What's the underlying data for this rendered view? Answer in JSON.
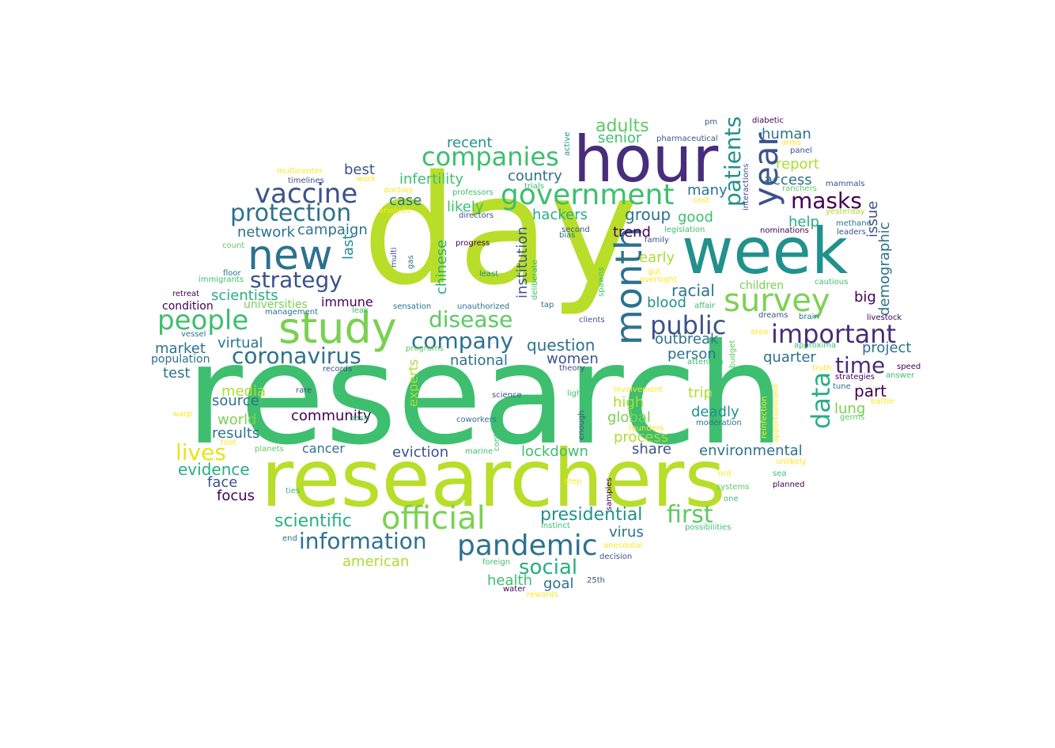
{
  "palette": [
    "#440154",
    "#472d7b",
    "#3b528b",
    "#2c728e",
    "#21918c",
    "#28ae80",
    "#5ec962",
    "#addc30",
    "#fde725"
  ],
  "words": [
    {
      "text": "research",
      "color": "#3dbf6f"
    },
    {
      "text": "day",
      "color": "#b8de29"
    },
    {
      "text": "researchers",
      "color": "#b8de29"
    },
    {
      "text": "hour",
      "color": "#472d7b"
    },
    {
      "text": "week",
      "color": "#21918c"
    },
    {
      "text": "month",
      "color": "#2c728e"
    },
    {
      "text": "year",
      "color": "#3b528b"
    },
    {
      "text": "study",
      "color": "#7ad151"
    },
    {
      "text": "new",
      "color": "#2c728e"
    },
    {
      "text": "survey",
      "color": "#7ad151"
    },
    {
      "text": "official",
      "color": "#7ad151"
    },
    {
      "text": "government",
      "color": "#3dbf6f"
    },
    {
      "text": "pandemic",
      "color": "#2c728e"
    },
    {
      "text": "companies",
      "color": "#3dbf6f"
    },
    {
      "text": "vaccine",
      "color": "#3b528b"
    },
    {
      "text": "protection",
      "color": "#2c728e"
    },
    {
      "text": "people",
      "color": "#3dbf6f"
    },
    {
      "text": "coronavirus",
      "color": "#2c728e"
    },
    {
      "text": "important",
      "color": "#472d7b"
    },
    {
      "text": "public",
      "color": "#3b528b"
    },
    {
      "text": "information",
      "color": "#2c728e"
    },
    {
      "text": "patients",
      "color": "#21918c"
    },
    {
      "text": "data",
      "color": "#28ae80"
    },
    {
      "text": "strategy",
      "color": "#3b528b"
    },
    {
      "text": "disease",
      "color": "#5ec962"
    },
    {
      "text": "company",
      "color": "#2c728e"
    },
    {
      "text": "time",
      "color": "#472d7b"
    },
    {
      "text": "masks",
      "color": "#440154"
    },
    {
      "text": "social",
      "color": "#28ae80"
    },
    {
      "text": "first",
      "color": "#5ec962"
    },
    {
      "text": "lives",
      "color": "#e8e419"
    },
    {
      "text": "presidential",
      "color": "#21918c"
    },
    {
      "text": "scientific",
      "color": "#28ae80"
    },
    {
      "text": "adults",
      "color": "#5ec962"
    },
    {
      "text": "question",
      "color": "#2c728e"
    },
    {
      "text": "infertility",
      "color": "#3dbf6f"
    },
    {
      "text": "institution",
      "color": "#3b528b"
    },
    {
      "text": "demographic",
      "color": "#2c728e"
    },
    {
      "text": "issue",
      "color": "#3b528b"
    },
    {
      "text": "chinese",
      "color": "#28ae80"
    },
    {
      "text": "last",
      "color": "#21918c"
    },
    {
      "text": "evidence",
      "color": "#28ae80"
    },
    {
      "text": "environmental",
      "color": "#2c728e"
    },
    {
      "text": "deadly",
      "color": "#21918c"
    },
    {
      "text": "group",
      "color": "#2c728e"
    },
    {
      "text": "outbreak",
      "color": "#2c728e"
    },
    {
      "text": "racial",
      "color": "#2c728e"
    },
    {
      "text": "national",
      "color": "#2c728e"
    },
    {
      "text": "american",
      "color": "#addc30"
    },
    {
      "text": "hackers",
      "color": "#28ae80"
    },
    {
      "text": "part",
      "color": "#440154"
    },
    {
      "text": "lockdown",
      "color": "#3dbf6f"
    },
    {
      "text": "virus",
      "color": "#2c728e"
    },
    {
      "text": "community",
      "color": "#440154"
    },
    {
      "text": "eviction",
      "color": "#3b528b"
    },
    {
      "text": "campaign",
      "color": "#2c728e"
    },
    {
      "text": "network",
      "color": "#2c728e"
    },
    {
      "text": "scientists",
      "color": "#28ae80"
    },
    {
      "text": "recent",
      "color": "#21918c"
    },
    {
      "text": "country",
      "color": "#2c728e"
    },
    {
      "text": "likely",
      "color": "#3dbf6f"
    },
    {
      "text": "case",
      "color": "#2c728e"
    },
    {
      "text": "best",
      "color": "#3b528b"
    },
    {
      "text": "trend",
      "color": "#440154"
    },
    {
      "text": "early",
      "color": "#addc30"
    },
    {
      "text": "blood",
      "color": "#21918c"
    },
    {
      "text": "senior",
      "color": "#3dbf6f"
    },
    {
      "text": "human",
      "color": "#2c728e"
    },
    {
      "text": "access",
      "color": "#2c728e"
    },
    {
      "text": "report",
      "color": "#addc30"
    },
    {
      "text": "help",
      "color": "#28ae80"
    },
    {
      "text": "many",
      "color": "#2c728e"
    },
    {
      "text": "good",
      "color": "#3dbf6f"
    },
    {
      "text": "immune",
      "color": "#440154"
    },
    {
      "text": "universities",
      "color": "#7ad151"
    },
    {
      "text": "condition",
      "color": "#440154"
    },
    {
      "text": "market",
      "color": "#2c728e"
    },
    {
      "text": "population",
      "color": "#2c728e"
    },
    {
      "text": "test",
      "color": "#2c728e"
    },
    {
      "text": "virtual",
      "color": "#2c728e"
    },
    {
      "text": "women",
      "color": "#3b528b"
    },
    {
      "text": "person",
      "color": "#2c728e"
    },
    {
      "text": "quarter",
      "color": "#2c728e"
    },
    {
      "text": "project",
      "color": "#2c728e"
    },
    {
      "text": "big",
      "color": "#440154"
    },
    {
      "text": "children",
      "color": "#7ad151"
    },
    {
      "text": "media",
      "color": "#addc30"
    },
    {
      "text": "source",
      "color": "#2c728e"
    },
    {
      "text": "world",
      "color": "#7ad151"
    },
    {
      "text": "results",
      "color": "#2c728e"
    },
    {
      "text": "high",
      "color": "#addc30"
    },
    {
      "text": "global",
      "color": "#7ad151"
    },
    {
      "text": "process",
      "color": "#addc30"
    },
    {
      "text": "share",
      "color": "#3b528b"
    },
    {
      "text": "trip",
      "color": "#addc30"
    },
    {
      "text": "lung",
      "color": "#7ad151"
    },
    {
      "text": "cancer",
      "color": "#2c728e"
    },
    {
      "text": "face",
      "color": "#3b528b"
    },
    {
      "text": "focus",
      "color": "#440154"
    },
    {
      "text": "experts",
      "color": "#addc30"
    },
    {
      "text": "health",
      "color": "#3dbf6f"
    },
    {
      "text": "goal",
      "color": "#2c728e"
    },
    {
      "text": "multicenter",
      "color": "#fde725"
    },
    {
      "text": "work",
      "color": "#fde725"
    },
    {
      "text": "timelines",
      "color": "#3b528b"
    },
    {
      "text": "analysis",
      "color": "#fde725"
    },
    {
      "text": "doctors",
      "color": "#fde725"
    },
    {
      "text": "professors",
      "color": "#3dbf6f"
    },
    {
      "text": "directors",
      "color": "#3b528b"
    },
    {
      "text": "trials",
      "color": "#3dbf6f"
    },
    {
      "text": "progress",
      "color": "#440154"
    },
    {
      "text": "count",
      "color": "#5ec962"
    },
    {
      "text": "floor",
      "color": "#2c728e"
    },
    {
      "text": "gas",
      "color": "#2c728e"
    },
    {
      "text": "multi",
      "color": "#3b528b"
    },
    {
      "text": "immigrants",
      "color": "#3dbf6f"
    },
    {
      "text": "least",
      "color": "#21918c"
    },
    {
      "text": "retreat",
      "color": "#440154"
    },
    {
      "text": "management",
      "color": "#2c728e"
    },
    {
      "text": "leak",
      "color": "#3dbf6f"
    },
    {
      "text": "sensation",
      "color": "#2c728e"
    },
    {
      "text": "unauthorized",
      "color": "#2c728e"
    },
    {
      "text": "vessel",
      "color": "#2c728e"
    },
    {
      "text": "programs",
      "color": "#5ec962"
    },
    {
      "text": "records",
      "color": "#3b528b"
    },
    {
      "text": "rare",
      "color": "#3b528b"
    },
    {
      "text": "science",
      "color": "#3b528b"
    },
    {
      "text": "basic",
      "color": "#3dbf6f"
    },
    {
      "text": "warp",
      "color": "#fde725"
    },
    {
      "text": "coworkers",
      "color": "#2c728e"
    },
    {
      "text": "planets",
      "color": "#5ec962"
    },
    {
      "text": "marine",
      "color": "#3dbf6f"
    },
    {
      "text": "content",
      "color": "#3dbf6f"
    },
    {
      "text": "enough",
      "color": "#3b528b"
    },
    {
      "text": "light",
      "color": "#3dbf6f"
    },
    {
      "text": "theory",
      "color": "#3b528b"
    },
    {
      "text": "clients",
      "color": "#3b528b"
    },
    {
      "text": "tap",
      "color": "#2c728e"
    },
    {
      "text": "deliberate",
      "color": "#3dbf6f"
    },
    {
      "text": "bias",
      "color": "#2c728e"
    },
    {
      "text": "second",
      "color": "#3b528b"
    },
    {
      "text": "active",
      "color": "#21918c"
    },
    {
      "text": "pm",
      "color": "#3b528b"
    },
    {
      "text": "pharmaceutical",
      "color": "#3b528b"
    },
    {
      "text": "diabetic",
      "color": "#440154"
    },
    {
      "text": "arms",
      "color": "#fde725"
    },
    {
      "text": "panel",
      "color": "#3b528b"
    },
    {
      "text": "ranchers",
      "color": "#5ec962"
    },
    {
      "text": "cost",
      "color": "#fde725"
    },
    {
      "text": "interactions",
      "color": "#3b528b"
    },
    {
      "text": "legislation",
      "color": "#3dbf6f"
    },
    {
      "text": "family",
      "color": "#3b528b"
    },
    {
      "text": "nominations",
      "color": "#440154"
    },
    {
      "text": "methane",
      "color": "#2c728e"
    },
    {
      "text": "leaders",
      "color": "#3b528b"
    },
    {
      "text": "mammals",
      "color": "#3b528b"
    },
    {
      "text": "yesterday",
      "color": "#addc30"
    },
    {
      "text": "gut",
      "color": "#fde725"
    },
    {
      "text": "oversight",
      "color": "#fde725"
    },
    {
      "text": "cautious",
      "color": "#3dbf6f"
    },
    {
      "text": "spawns",
      "color": "#3dbf6f"
    },
    {
      "text": "affair",
      "color": "#3dbf6f"
    },
    {
      "text": "dreams",
      "color": "#3b528b"
    },
    {
      "text": "brain",
      "color": "#2c728e"
    },
    {
      "text": "livestock",
      "color": "#440154"
    },
    {
      "text": "area",
      "color": "#fde725"
    },
    {
      "text": "approxima",
      "color": "#3dbf6f"
    },
    {
      "text": "attention",
      "color": "#3dbf6f"
    },
    {
      "text": "budget",
      "color": "#5ec962"
    },
    {
      "text": "speed",
      "color": "#440154"
    },
    {
      "text": "truth",
      "color": "#fde725"
    },
    {
      "text": "strategies",
      "color": "#440154"
    },
    {
      "text": "answer",
      "color": "#3dbf6f"
    },
    {
      "text": "tune",
      "color": "#2c728e"
    },
    {
      "text": "germs",
      "color": "#5ec962"
    },
    {
      "text": "battle",
      "color": "#fde725"
    },
    {
      "text": "involvement",
      "color": "#fde725"
    },
    {
      "text": "founders",
      "color": "#fde725"
    },
    {
      "text": "moderation",
      "color": "#2c728e"
    },
    {
      "text": "reinfection",
      "color": "#fde725"
    },
    {
      "text": "apportionment",
      "color": "#fde725"
    },
    {
      "text": "unlikely",
      "color": "#fde725"
    },
    {
      "text": "ord",
      "color": "#fde725"
    },
    {
      "text": "sea",
      "color": "#3dbf6f"
    },
    {
      "text": "systems",
      "color": "#5ec962"
    },
    {
      "text": "planned",
      "color": "#440154"
    },
    {
      "text": "one",
      "color": "#3dbf6f"
    },
    {
      "text": "step",
      "color": "#fde725"
    },
    {
      "text": "samples",
      "color": "#440154"
    },
    {
      "text": "ties",
      "color": "#3dbf6f"
    },
    {
      "text": "instinct",
      "color": "#3dbf6f"
    },
    {
      "text": "possibilities",
      "color": "#3dbf6f"
    },
    {
      "text": "end",
      "color": "#2c728e"
    },
    {
      "text": "anecdotal",
      "color": "#fde725"
    },
    {
      "text": "foreign",
      "color": "#3dbf6f"
    },
    {
      "text": "decision",
      "color": "#3b528b"
    },
    {
      "text": "25th",
      "color": "#3b528b"
    },
    {
      "text": "water",
      "color": "#440154"
    },
    {
      "text": "rewards",
      "color": "#fde725"
    },
    {
      "text": "foot",
      "color": "#fde725"
    }
  ]
}
